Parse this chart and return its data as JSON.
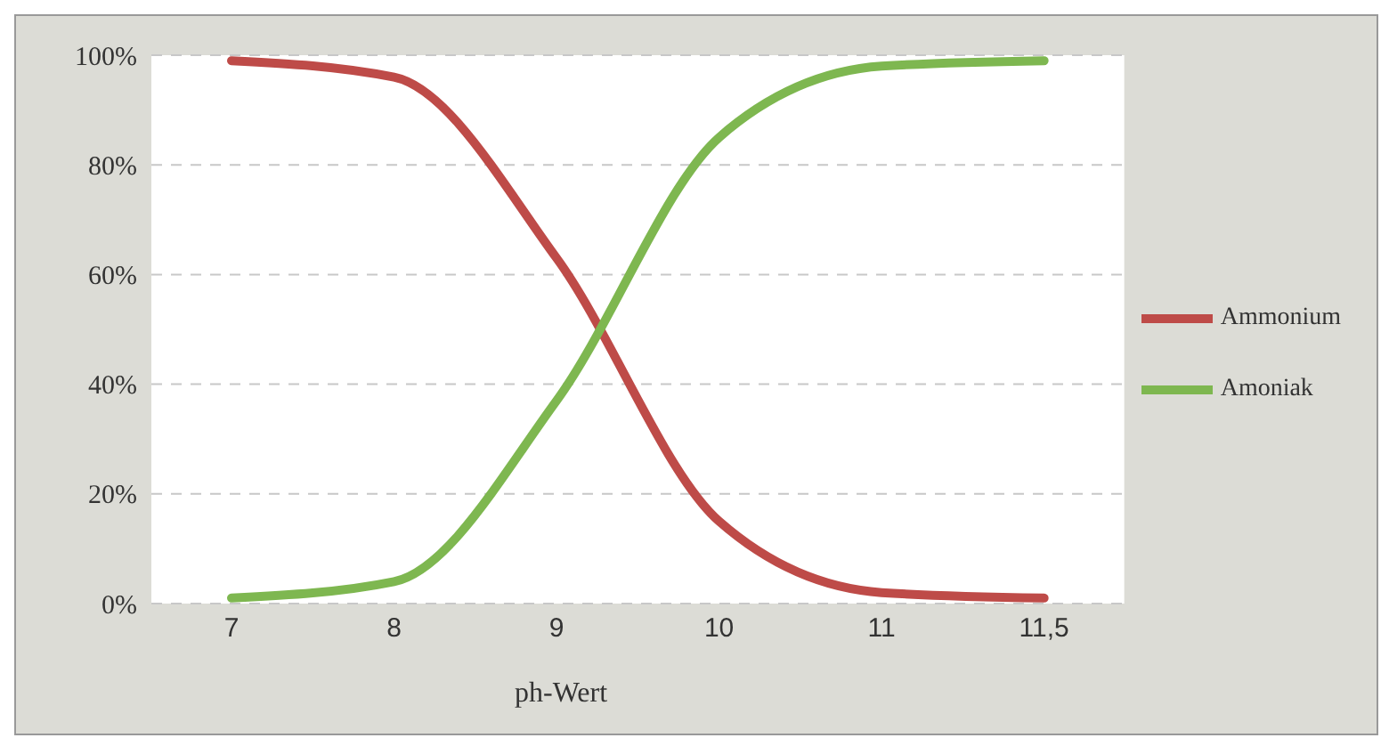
{
  "chart_data": {
    "type": "line",
    "xlabel": "ph-Wert",
    "categories": [
      "7",
      "8",
      "9",
      "10",
      "11",
      "11,5"
    ],
    "series": [
      {
        "name": "Ammonium",
        "color": "#be4b48",
        "values": [
          99,
          96,
          63,
          15,
          2,
          1
        ]
      },
      {
        "name": "Amoniak",
        "color": "#7eb750",
        "values": [
          1,
          4,
          37,
          85,
          98,
          99
        ]
      }
    ],
    "ylim": [
      0,
      100
    ],
    "yticks": [
      {
        "value": 0,
        "label": "0%"
      },
      {
        "value": 20,
        "label": "20%"
      },
      {
        "value": 40,
        "label": "40%"
      },
      {
        "value": 60,
        "label": "60%"
      },
      {
        "value": 80,
        "label": "80%"
      },
      {
        "value": 100,
        "label": "100%"
      }
    ],
    "grid": "y",
    "legend": "right",
    "marker": "none",
    "line_style": "solid"
  }
}
